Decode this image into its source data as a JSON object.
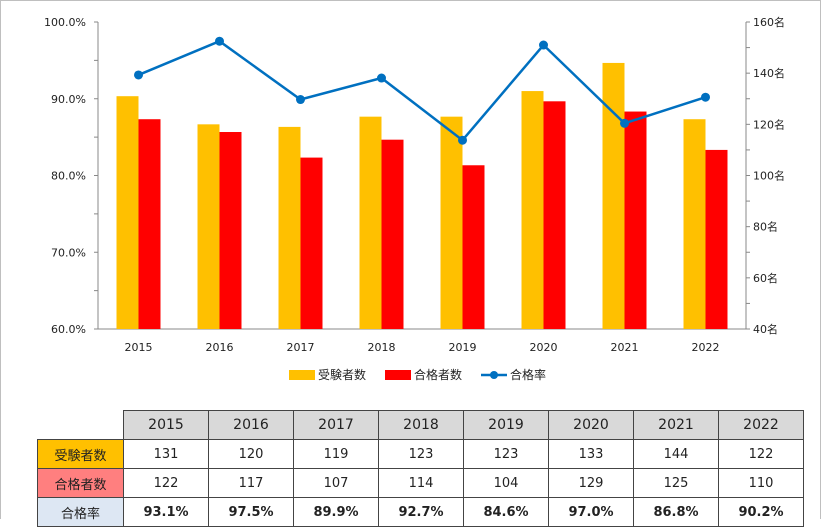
{
  "chart_data": {
    "type": "bar",
    "categories": [
      "2015",
      "2016",
      "2017",
      "2018",
      "2019",
      "2020",
      "2021",
      "2022"
    ],
    "series": [
      {
        "name": "受験者数",
        "type": "bar",
        "axis": "right",
        "color": "#ffc000",
        "values": [
          131,
          120,
          119,
          123,
          123,
          133,
          144,
          122
        ]
      },
      {
        "name": "合格者数",
        "type": "bar",
        "axis": "right",
        "color": "#ff0000",
        "values": [
          122,
          117,
          107,
          114,
          104,
          129,
          125,
          110
        ]
      },
      {
        "name": "合格率",
        "type": "line",
        "axis": "left",
        "color": "#0070c0",
        "values": [
          93.1,
          97.5,
          89.9,
          92.7,
          84.6,
          97.0,
          86.8,
          90.2
        ]
      }
    ],
    "left_axis": {
      "ylim": [
        60,
        100
      ],
      "ticks": [
        "60.0%",
        "70.0%",
        "80.0%",
        "90.0%",
        "100.0%"
      ]
    },
    "right_axis": {
      "ylim": [
        40,
        160
      ],
      "ticks": [
        "40名",
        "60名",
        "80名",
        "100名",
        "120名",
        "140名",
        "160名"
      ]
    },
    "legend_position": "bottom",
    "grid": false
  },
  "table": {
    "years": [
      "2015",
      "2016",
      "2017",
      "2018",
      "2019",
      "2020",
      "2021",
      "2022"
    ],
    "rows": [
      {
        "label": "受験者数",
        "color": "#ffc000",
        "values": [
          "131",
          "120",
          "119",
          "123",
          "123",
          "133",
          "144",
          "122"
        ]
      },
      {
        "label": "合格者数",
        "color": "#ff7f7f",
        "values": [
          "122",
          "117",
          "107",
          "114",
          "104",
          "129",
          "125",
          "110"
        ]
      },
      {
        "label": "合格率",
        "color": "#dde7f3",
        "values": [
          "93.1%",
          "97.5%",
          "89.9%",
          "92.7%",
          "84.6%",
          "97.0%",
          "86.8%",
          "90.2%"
        ]
      }
    ]
  }
}
